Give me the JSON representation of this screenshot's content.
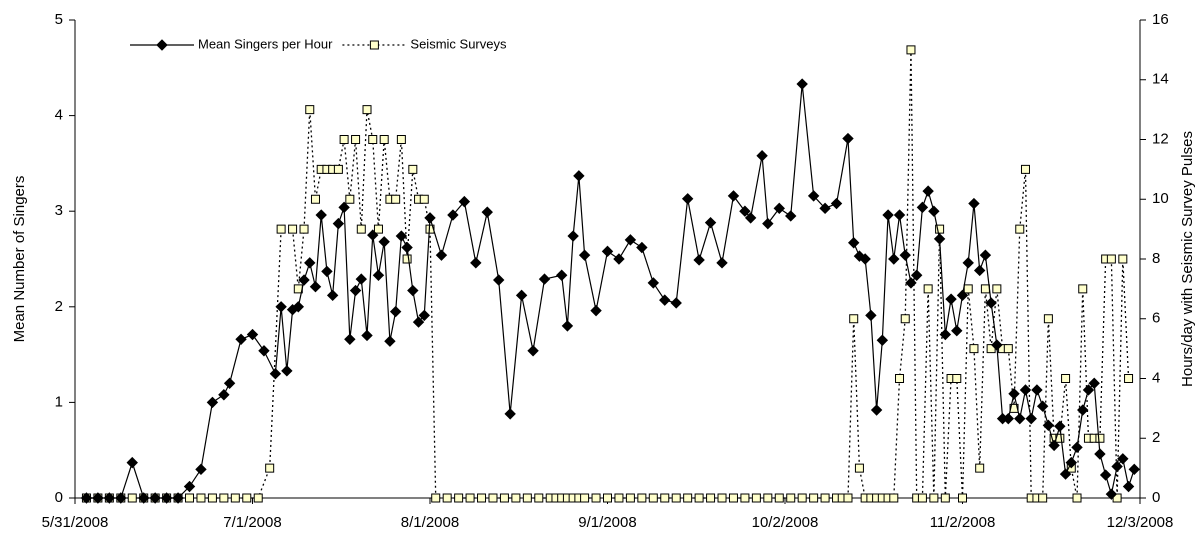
{
  "chart_data": {
    "type": "line",
    "y_label": "Mean Number of Singers",
    "y2_label": "Hours/day with Seismic Survey Pulses",
    "xlim": [
      "5/31/2008",
      "12/3/2008"
    ],
    "xticks": [
      "5/31/2008",
      "7/1/2008",
      "8/1/2008",
      "9/1/2008",
      "10/2/2008",
      "11/2/2008",
      "12/3/2008"
    ],
    "ylim": [
      0,
      5
    ],
    "yticks": [
      0,
      1,
      2,
      3,
      4,
      5
    ],
    "y2lim": [
      0,
      16
    ],
    "y2ticks": [
      0,
      2,
      4,
      6,
      8,
      10,
      12,
      14,
      16
    ],
    "grid": false,
    "legend": "top-left",
    "series": [
      {
        "name": "Mean Singers per Hour",
        "color": "#000000",
        "line_style": "solid",
        "marker": "diamond",
        "marker_fill": "#000000",
        "x": [
          "6/2/2008",
          "6/4/2008",
          "6/6/2008",
          "6/8/2008",
          "6/10/2008",
          "6/12/2008",
          "6/14/2008",
          "6/16/2008",
          "6/18/2008",
          "6/20/2008",
          "6/22/2008",
          "6/24/2008",
          "6/26/2008",
          "6/27/2008",
          "6/29/2008",
          "7/1/2008",
          "7/3/2008",
          "7/5/2008",
          "7/6/2008",
          "7/7/2008",
          "7/8/2008",
          "7/9/2008",
          "7/10/2008",
          "7/11/2008",
          "7/12/2008",
          "7/13/2008",
          "7/14/2008",
          "7/15/2008",
          "7/16/2008",
          "7/17/2008",
          "7/18/2008",
          "7/19/2008",
          "7/20/2008",
          "7/21/2008",
          "7/22/2008",
          "7/23/2008",
          "7/24/2008",
          "7/25/2008",
          "7/26/2008",
          "7/27/2008",
          "7/28/2008",
          "7/29/2008",
          "7/30/2008",
          "7/31/2008",
          "8/1/2008",
          "8/3/2008",
          "8/5/2008",
          "8/7/2008",
          "8/9/2008",
          "8/11/2008",
          "8/13/2008",
          "8/15/2008",
          "8/17/2008",
          "8/19/2008",
          "8/21/2008",
          "8/24/2008",
          "8/25/2008",
          "8/26/2008",
          "8/27/2008",
          "8/28/2008",
          "8/30/2008",
          "9/1/2008",
          "9/3/2008",
          "9/5/2008",
          "9/7/2008",
          "9/9/2008",
          "9/11/2008",
          "9/13/2008",
          "9/15/2008",
          "9/17/2008",
          "9/19/2008",
          "9/21/2008",
          "9/23/2008",
          "9/25/2008",
          "9/26/2008",
          "9/28/2008",
          "9/29/2008",
          "10/1/2008",
          "10/3/2008",
          "10/5/2008",
          "10/7/2008",
          "10/9/2008",
          "10/11/2008",
          "10/13/2008",
          "10/14/2008",
          "10/15/2008",
          "10/16/2008",
          "10/17/2008",
          "10/18/2008",
          "10/19/2008",
          "10/20/2008",
          "10/21/2008",
          "10/22/2008",
          "10/23/2008",
          "10/24/2008",
          "10/25/2008",
          "10/26/2008",
          "10/27/2008",
          "10/28/2008",
          "10/29/2008",
          "10/30/2008",
          "10/31/2008",
          "11/1/2008",
          "11/2/2008",
          "11/3/2008",
          "11/4/2008",
          "11/5/2008",
          "11/6/2008",
          "11/7/2008",
          "11/8/2008",
          "11/9/2008",
          "11/10/2008",
          "11/11/2008",
          "11/12/2008",
          "11/13/2008",
          "11/14/2008",
          "11/15/2008",
          "11/16/2008",
          "11/17/2008",
          "11/18/2008",
          "11/19/2008",
          "11/20/2008",
          "11/21/2008",
          "11/22/2008",
          "11/23/2008",
          "11/24/2008",
          "11/25/2008",
          "11/26/2008",
          "11/27/2008",
          "11/28/2008",
          "11/29/2008",
          "11/30/2008",
          "12/1/2008",
          "12/2/2008"
        ],
        "values": [
          0,
          0,
          0,
          0,
          0.37,
          0,
          0,
          0,
          0,
          0.12,
          0.3,
          1.0,
          1.08,
          1.2,
          1.66,
          1.71,
          1.54,
          1.3,
          2.0,
          1.33,
          1.97,
          2.0,
          2.28,
          2.46,
          2.21,
          2.96,
          2.37,
          2.12,
          2.87,
          3.04,
          1.66,
          2.17,
          2.29,
          1.7,
          2.75,
          2.33,
          2.68,
          1.64,
          1.95,
          2.74,
          2.62,
          2.17,
          1.84,
          1.91,
          2.93,
          2.54,
          2.96,
          3.1,
          2.46,
          2.99,
          2.28,
          0.88,
          2.12,
          1.54,
          2.29,
          2.33,
          1.8,
          2.74,
          3.37,
          2.54,
          1.96,
          2.58,
          2.5,
          2.7,
          2.62,
          2.25,
          2.07,
          2.04,
          3.13,
          2.49,
          2.88,
          2.46,
          3.16,
          3.0,
          2.93,
          3.58,
          2.87,
          3.03,
          2.95,
          4.33,
          3.16,
          3.03,
          3.08,
          3.76,
          2.67,
          2.53,
          2.5,
          1.91,
          0.92,
          1.65,
          2.96,
          2.5,
          2.96,
          2.54,
          2.25,
          2.33,
          3.04,
          3.21,
          3.0,
          2.71,
          1.71,
          2.08,
          1.75,
          2.12,
          2.46,
          3.08,
          2.38,
          2.54,
          2.04,
          1.6,
          0.83,
          0.83,
          1.09,
          0.83,
          1.13,
          0.83,
          1.13,
          0.96,
          0.76,
          0.55,
          0.75,
          0.25,
          0.37,
          0.53,
          0.92,
          1.13,
          1.2,
          0.46,
          0.24,
          0.04,
          0.33,
          0.41,
          0.12,
          0.3
        ]
      },
      {
        "name": "Seismic Surveys",
        "color": "#000000",
        "line_style": "dotted",
        "marker": "square",
        "marker_fill": "#ffffcc",
        "axis": "y2",
        "x": [
          "6/2/2008",
          "6/4/2008",
          "6/6/2008",
          "6/8/2008",
          "6/10/2008",
          "6/12/2008",
          "6/14/2008",
          "6/16/2008",
          "6/18/2008",
          "6/20/2008",
          "6/22/2008",
          "6/24/2008",
          "6/26/2008",
          "6/28/2008",
          "6/30/2008",
          "7/2/2008",
          "7/4/2008",
          "7/6/2008",
          "7/8/2008",
          "7/9/2008",
          "7/10/2008",
          "7/11/2008",
          "7/12/2008",
          "7/13/2008",
          "7/14/2008",
          "7/15/2008",
          "7/16/2008",
          "7/17/2008",
          "7/18/2008",
          "7/19/2008",
          "7/20/2008",
          "7/21/2008",
          "7/22/2008",
          "7/23/2008",
          "7/24/2008",
          "7/25/2008",
          "7/26/2008",
          "7/27/2008",
          "7/28/2008",
          "7/29/2008",
          "7/30/2008",
          "7/31/2008",
          "8/1/2008",
          "8/2/2008",
          "8/4/2008",
          "8/6/2008",
          "8/8/2008",
          "8/10/2008",
          "8/12/2008",
          "8/14/2008",
          "8/16/2008",
          "8/18/2008",
          "8/20/2008",
          "8/22/2008",
          "8/23/2008",
          "8/24/2008",
          "8/25/2008",
          "8/26/2008",
          "8/27/2008",
          "8/28/2008",
          "8/30/2008",
          "9/1/2008",
          "9/3/2008",
          "9/5/2008",
          "9/7/2008",
          "9/9/2008",
          "9/11/2008",
          "9/13/2008",
          "9/15/2008",
          "9/17/2008",
          "9/19/2008",
          "9/21/2008",
          "9/23/2008",
          "9/25/2008",
          "9/27/2008",
          "9/29/2008",
          "10/1/2008",
          "10/3/2008",
          "10/5/2008",
          "10/7/2008",
          "10/9/2008",
          "10/11/2008",
          "10/12/2008",
          "10/13/2008",
          "10/14/2008",
          "10/15/2008",
          "10/16/2008",
          "10/17/2008",
          "10/18/2008",
          "10/19/2008",
          "10/20/2008",
          "10/21/2008",
          "10/22/2008",
          "10/23/2008",
          "10/24/2008",
          "10/25/2008",
          "10/26/2008",
          "10/27/2008",
          "10/28/2008",
          "10/29/2008",
          "10/30/2008",
          "10/31/2008",
          "11/1/2008",
          "11/2/2008",
          "11/3/2008",
          "11/4/2008",
          "11/5/2008",
          "11/6/2008",
          "11/7/2008",
          "11/8/2008",
          "11/9/2008",
          "11/10/2008",
          "11/11/2008",
          "11/12/2008",
          "11/13/2008",
          "11/14/2008",
          "11/15/2008",
          "11/16/2008",
          "11/17/2008",
          "11/18/2008",
          "11/19/2008",
          "11/20/2008",
          "11/21/2008",
          "11/22/2008",
          "11/23/2008",
          "11/24/2008",
          "11/25/2008",
          "11/26/2008",
          "11/27/2008",
          "11/28/2008",
          "11/29/2008",
          "11/30/2008",
          "12/1/2008"
        ],
        "values": [
          0,
          0,
          0,
          0,
          0,
          0,
          0,
          0,
          0,
          0,
          0,
          0,
          0,
          0,
          0,
          0,
          1,
          9,
          9,
          7,
          9,
          13,
          10,
          11,
          11,
          11,
          11,
          12,
          10,
          12,
          9,
          13,
          12,
          9,
          12,
          10,
          10,
          12,
          8,
          11,
          10,
          10,
          9,
          0,
          0,
          0,
          0,
          0,
          0,
          0,
          0,
          0,
          0,
          0,
          0,
          0,
          0,
          0,
          0,
          0,
          0,
          0,
          0,
          0,
          0,
          0,
          0,
          0,
          0,
          0,
          0,
          0,
          0,
          0,
          0,
          0,
          0,
          0,
          0,
          0,
          0,
          0,
          0,
          0,
          6,
          1,
          0,
          0,
          0,
          0,
          0,
          0,
          4,
          6,
          15,
          0,
          0,
          7,
          0,
          9,
          0,
          4,
          4,
          0,
          7,
          5,
          1,
          7,
          5,
          7,
          5,
          5,
          3,
          9,
          11,
          0,
          0,
          0,
          6,
          2,
          2,
          4,
          1,
          0,
          7,
          2,
          2,
          2,
          8,
          8,
          0,
          8,
          4
        ]
      }
    ]
  }
}
